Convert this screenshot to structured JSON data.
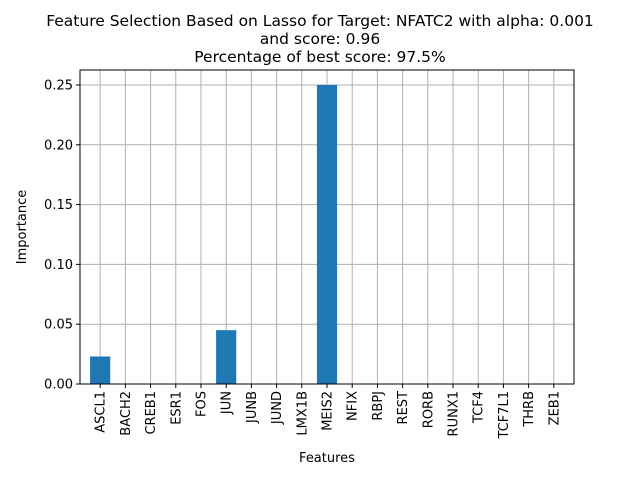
{
  "chart_data": {
    "type": "bar",
    "title_lines": [
      "Feature Selection Based on Lasso for Target: NFATC2 with alpha: 0.001",
      "and score: 0.96",
      "Percentage of best score: 97.5%"
    ],
    "xlabel": "Features",
    "ylabel": "Importance",
    "categories": [
      "ASCL1",
      "BACH2",
      "CREB1",
      "ESR1",
      "FOS",
      "JUN",
      "JUNB",
      "JUND",
      "LMX1B",
      "MEIS2",
      "NFIX",
      "RBPJ",
      "REST",
      "RORB",
      "RUNX1",
      "TCF4",
      "TCF7L1",
      "THRB",
      "ZEB1"
    ],
    "values": [
      0.023,
      0,
      0,
      0,
      0,
      0.045,
      0,
      0,
      0,
      0.25,
      0,
      0,
      0,
      0,
      0,
      0,
      0,
      0,
      0
    ],
    "ylim": [
      0,
      0.2625
    ],
    "yticks": [
      "0.00",
      "0.05",
      "0.10",
      "0.15",
      "0.20",
      "0.25"
    ],
    "grid": true,
    "bar_color": "#1f77b4",
    "grid_color": "#b0b0b0"
  }
}
